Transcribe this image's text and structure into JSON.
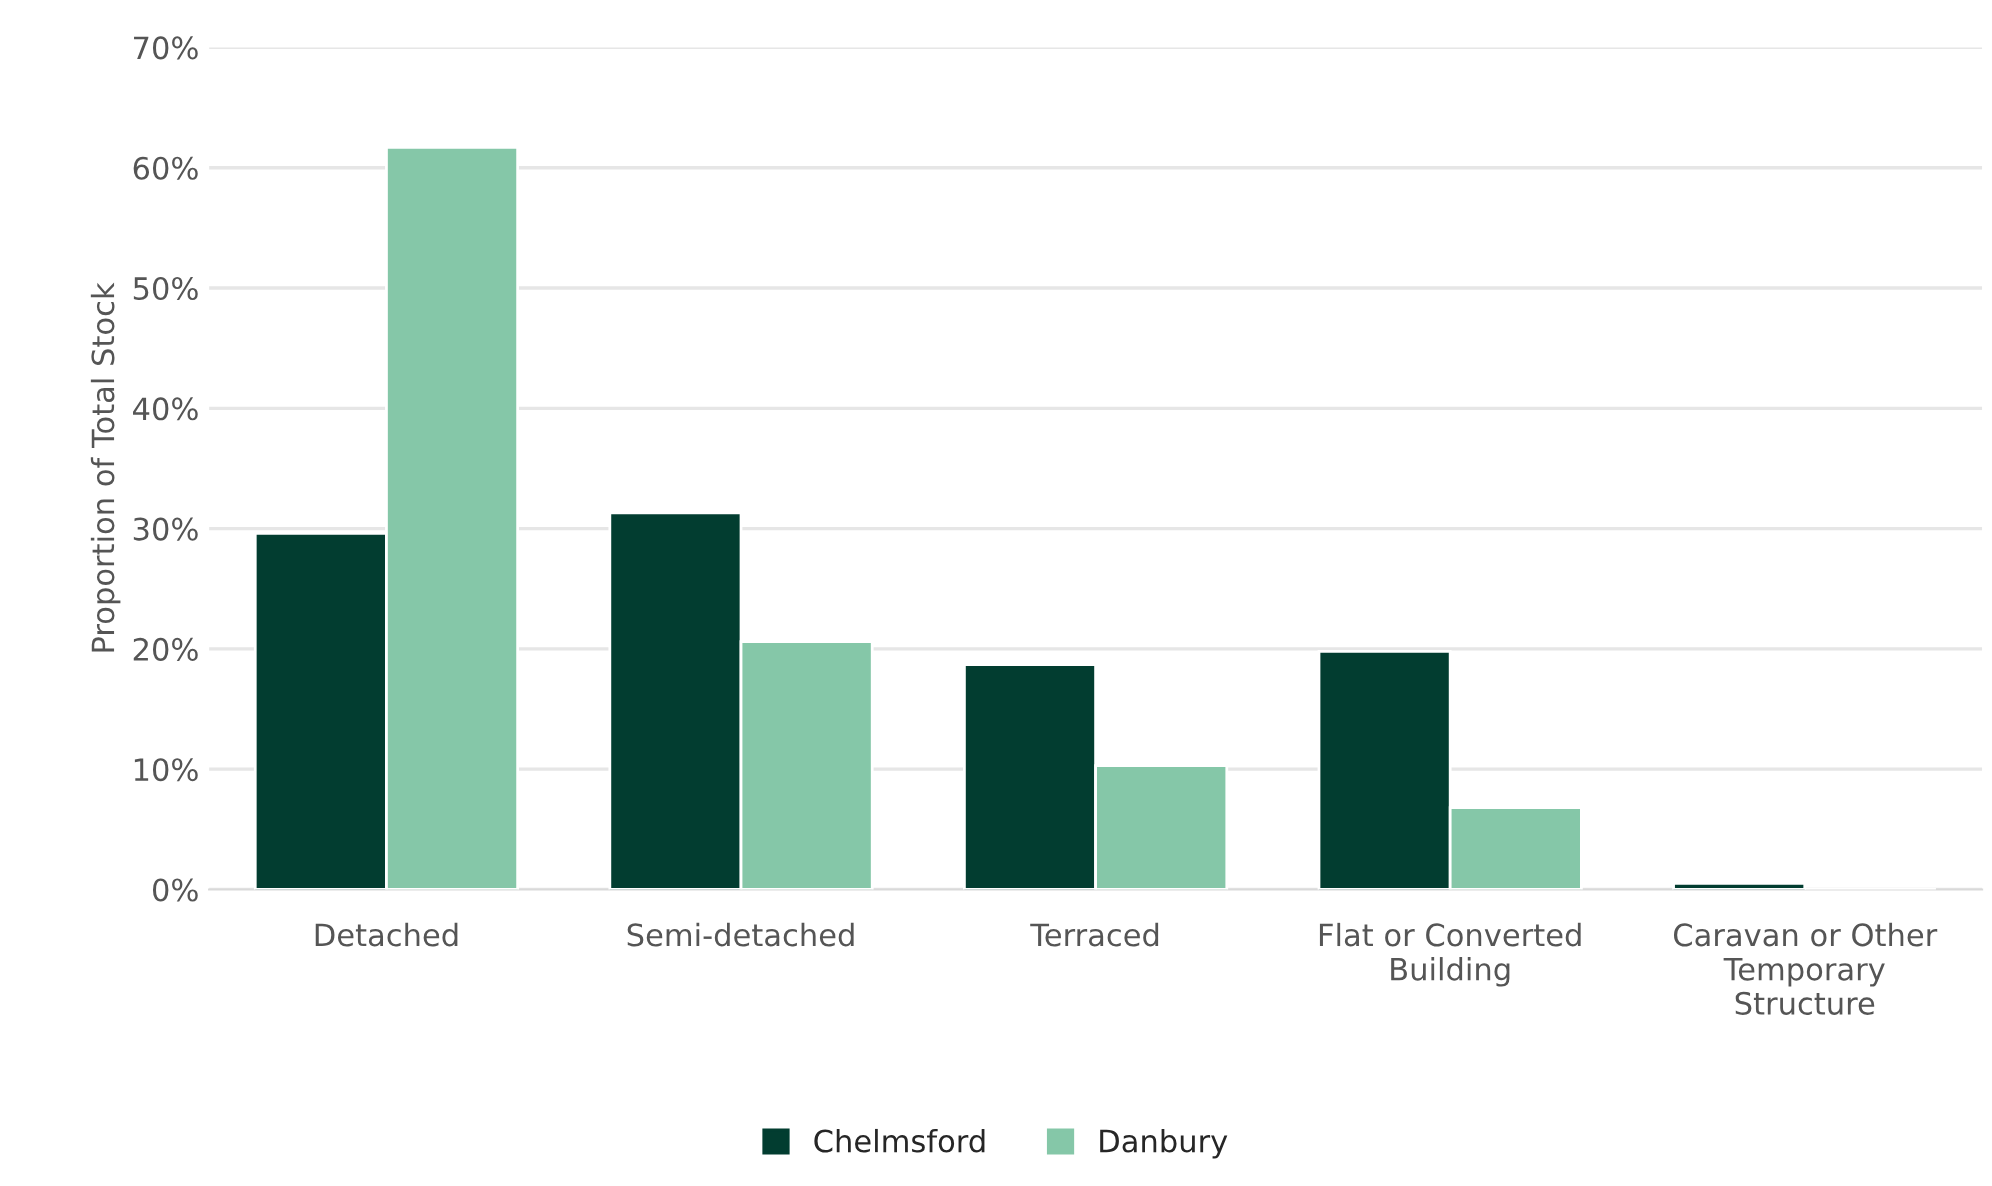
{
  "chart_data": {
    "type": "bar",
    "ylabel": "Proportion of Total Stock",
    "categories": [
      "Detached",
      "Semi-detached",
      "Terraced",
      "Flat or Converted\nBuilding",
      "Caravan or Other\nTemporary\nStructure"
    ],
    "series": [
      {
        "name": "Chelmsford",
        "color": "#023d30",
        "values": [
          29.6,
          31.3,
          18.7,
          19.8,
          0.5
        ]
      },
      {
        "name": "Danbury",
        "color": "#85c7a8",
        "values": [
          61.7,
          20.6,
          10.3,
          6.8,
          null
        ]
      }
    ],
    "ylim": [
      0,
      70
    ],
    "yticks": [
      {
        "value": 0,
        "label": "0%"
      },
      {
        "value": 10,
        "label": "10%"
      },
      {
        "value": 20,
        "label": "20%"
      },
      {
        "value": 30,
        "label": "30%"
      },
      {
        "value": 40,
        "label": "40%"
      },
      {
        "value": 50,
        "label": "50%"
      },
      {
        "value": 60,
        "label": "60%"
      },
      {
        "value": 70,
        "label": "70%"
      }
    ],
    "grid": "y",
    "legend": "bottom"
  }
}
